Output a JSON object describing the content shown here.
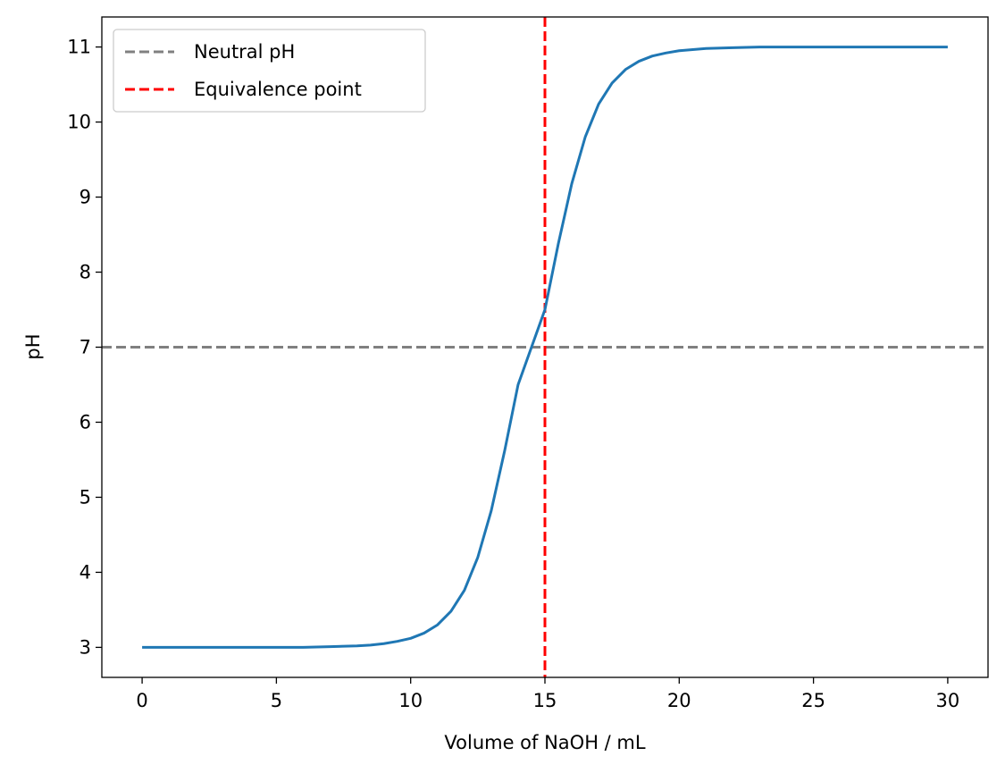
{
  "chart_data": {
    "type": "line",
    "title": "",
    "xlabel": "Volume of NaOH / mL",
    "ylabel": "pH",
    "xlim": [
      -1.5,
      31.5
    ],
    "ylim": [
      2.6,
      11.4
    ],
    "xticks": [
      0,
      5,
      10,
      15,
      20,
      25,
      30
    ],
    "yticks": [
      3,
      4,
      5,
      6,
      7,
      8,
      9,
      10,
      11
    ],
    "grid": false,
    "legend_position": "top-left",
    "series": [
      {
        "color": "#1f77b4",
        "x": [
          0,
          1,
          2,
          3,
          4,
          5,
          6,
          7,
          8,
          8.5,
          9,
          9.5,
          10,
          10.5,
          11,
          11.5,
          12,
          12.5,
          13,
          13.5,
          14,
          14.5,
          15,
          15.5,
          16,
          16.5,
          17,
          17.5,
          18,
          18.5,
          19,
          19.5,
          20,
          21,
          22,
          23,
          24,
          25,
          26,
          27,
          28,
          29,
          30
        ],
        "y": [
          3.0,
          3.0,
          3.0,
          3.0,
          3.0,
          3.0,
          3.0,
          3.01,
          3.02,
          3.03,
          3.05,
          3.08,
          3.12,
          3.19,
          3.3,
          3.48,
          3.76,
          4.2,
          4.82,
          5.62,
          6.5,
          7.0,
          7.5,
          8.38,
          9.18,
          9.8,
          10.24,
          10.52,
          10.7,
          10.81,
          10.88,
          10.92,
          10.95,
          10.98,
          10.99,
          11.0,
          11.0,
          11.0,
          11.0,
          11.0,
          11.0,
          11.0,
          11.0
        ]
      }
    ],
    "reference_lines": [
      {
        "orientation": "horizontal",
        "value": 7,
        "label": "Neutral pH",
        "color": "#808080",
        "style": "dashed"
      },
      {
        "orientation": "vertical",
        "value": 15,
        "label": "Equivalence point",
        "color": "#ff0000",
        "style": "dashed"
      }
    ],
    "legend": [
      "Neutral pH",
      "Equivalence point"
    ]
  }
}
